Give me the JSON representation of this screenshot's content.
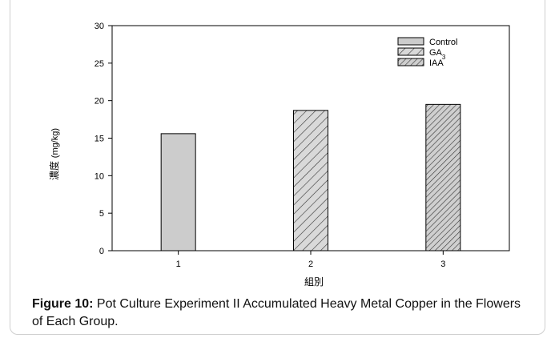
{
  "chart_data": {
    "type": "bar",
    "categories": [
      "1",
      "2",
      "3"
    ],
    "series": [
      {
        "name": "Control",
        "values": [
          15.6,
          null,
          null
        ],
        "fill": "#cccccc",
        "pattern": "solid"
      },
      {
        "name": "GA3",
        "name_base": "GA",
        "name_sub": "3",
        "values": [
          null,
          18.7,
          null
        ],
        "fill": "#d9d9d9",
        "pattern": "hatch"
      },
      {
        "name": "IAA",
        "values": [
          null,
          null,
          19.5
        ],
        "fill": "#bfbfbf",
        "pattern": "dense-hatch"
      }
    ],
    "title": "",
    "xlabel": "組別",
    "ylabel_cn": "濃度",
    "ylabel_unit": "(mg/kg)",
    "ylim": [
      0,
      30
    ],
    "yticks": [
      0,
      5,
      10,
      15,
      20,
      25,
      30
    ],
    "grid": false,
    "legend_position": "top-right"
  },
  "caption": {
    "label": "Figure 10:",
    "text": " Pot Culture Experiment II Accumulated Heavy Metal Copper in the Flowers of Each Group."
  }
}
